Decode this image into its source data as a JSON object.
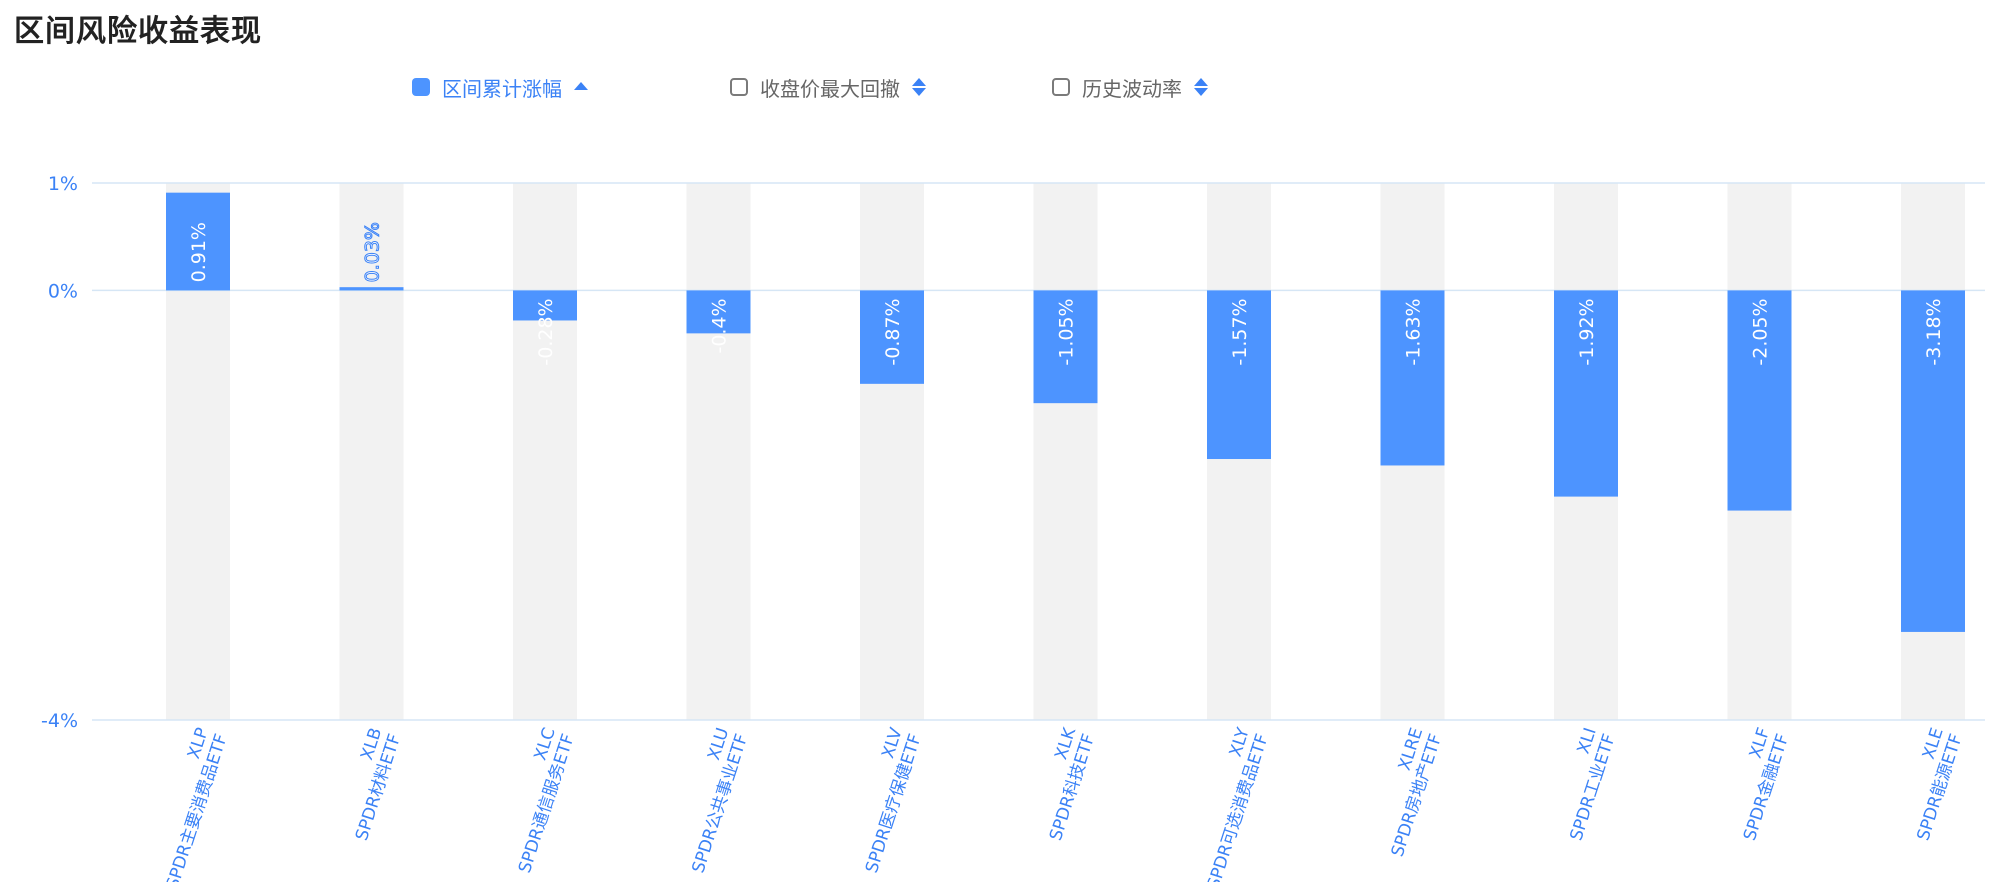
{
  "title": "区间风险收益表现",
  "legend": [
    {
      "label": "区间累计涨幅",
      "checked": true,
      "sort": "asc"
    },
    {
      "label": "收盘价最大回撤",
      "checked": false,
      "sort": "both"
    },
    {
      "label": "历史波动率",
      "checked": false,
      "sort": "both"
    }
  ],
  "colors": {
    "bar": "#4d94ff",
    "band": "#f2f2f2",
    "grid": "#d6e6f5",
    "text": "#3b82f6"
  },
  "chart_data": {
    "type": "bar",
    "title": "区间风险收益表现",
    "ylim": [
      -4,
      1
    ],
    "yticks": [
      {
        "value": 1,
        "label": "1%"
      },
      {
        "value": 0,
        "label": "0%"
      },
      {
        "value": -4,
        "label": "-4%"
      }
    ],
    "categories": [
      {
        "code": "XLP",
        "name": "SPDR主要消费品ETF"
      },
      {
        "code": "XLB",
        "name": "SPDR材料ETF"
      },
      {
        "code": "XLC",
        "name": "SPDR通信服务ETF"
      },
      {
        "code": "XLU",
        "name": "SPDR公共事业ETF"
      },
      {
        "code": "XLV",
        "name": "SPDR医疗保健ETF"
      },
      {
        "code": "XLK",
        "name": "SPDR科技ETF"
      },
      {
        "code": "XLY",
        "name": "SPDR可选消费品ETF"
      },
      {
        "code": "XLRE",
        "name": "SPDR房地产ETF"
      },
      {
        "code": "XLI",
        "name": "SPDR工业ETF"
      },
      {
        "code": "XLF",
        "name": "SPDR金融ETF"
      },
      {
        "code": "XLE",
        "name": "SPDR能源ETF"
      }
    ],
    "series": [
      {
        "name": "区间累计涨幅",
        "values": [
          0.91,
          0.03,
          -0.28,
          -0.4,
          -0.87,
          -1.05,
          -1.57,
          -1.63,
          -1.92,
          -2.05,
          -3.18
        ],
        "labels": [
          "0.91%",
          "0.03%",
          "-0.28%",
          "-0.4%",
          "-0.87%",
          "-1.05%",
          "-1.57%",
          "-1.63%",
          "-1.92%",
          "-2.05%",
          "-3.18%"
        ]
      }
    ]
  }
}
